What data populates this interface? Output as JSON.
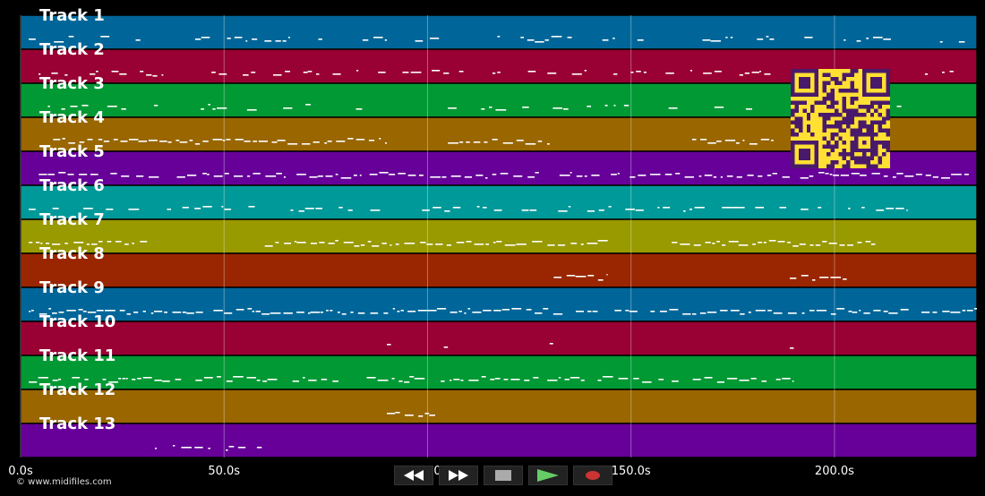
{
  "tracks": [
    {
      "name": "Track 1",
      "color": "#006699"
    },
    {
      "name": "Track 2",
      "color": "#990033"
    },
    {
      "name": "Track 3",
      "color": "#009933"
    },
    {
      "name": "Track 4",
      "color": "#996600"
    },
    {
      "name": "Track 5",
      "color": "#660099"
    },
    {
      "name": "Track 6",
      "color": "#009999"
    },
    {
      "name": "Track 7",
      "color": "#999900"
    },
    {
      "name": "Track 8",
      "color": "#992600"
    },
    {
      "name": "Track 9",
      "color": "#006699"
    },
    {
      "name": "Track 10",
      "color": "#990033"
    },
    {
      "name": "Track 11",
      "color": "#009933"
    },
    {
      "name": "Track 12",
      "color": "#996600"
    },
    {
      "name": "Track 13",
      "color": "#660099"
    }
  ],
  "timeline": {
    "duration_s": 235,
    "ticks": [
      {
        "t": 0,
        "label": "0.0s"
      },
      {
        "t": 50,
        "label": "50.0s"
      },
      {
        "t": 100,
        "label": "100.0s"
      },
      {
        "t": 150,
        "label": "150.0s"
      },
      {
        "t": 200,
        "label": "200.0s"
      }
    ]
  },
  "transport": {
    "rewind_icon": "rewind-icon",
    "fast_forward_icon": "fast-forward-icon",
    "stop_icon": "stop-icon",
    "play_icon": "play-icon",
    "record_icon": "record-icon",
    "colors": {
      "stop": "#aaaaaa",
      "play": "#66cc66",
      "record": "#cc3333",
      "bg": "#222222"
    }
  },
  "qr_code": {
    "colors": {
      "fg": "#4a1a6a",
      "bg": "#ffe033"
    }
  },
  "footer": {
    "copyright": "© www.midifiles.com"
  }
}
